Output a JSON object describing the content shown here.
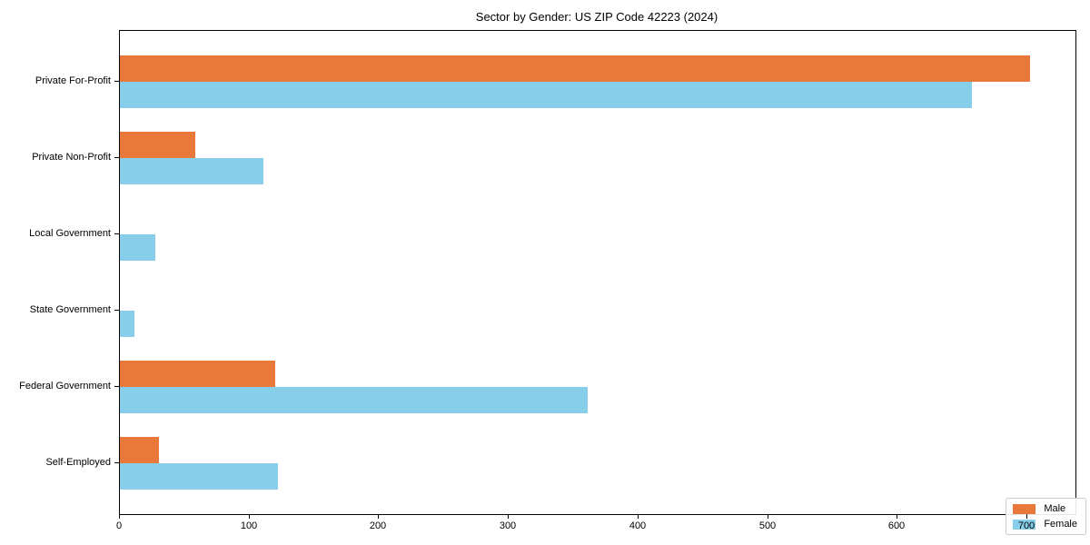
{
  "title": "Sector by Gender: US ZIP Code 42223 (2024)",
  "chart_data": {
    "type": "bar",
    "orientation": "horizontal",
    "title": "Sector by Gender: US ZIP Code 42223 (2024)",
    "categories": [
      "Private For-Profit",
      "Private Non-Profit",
      "Local Government",
      "State Government",
      "Federal Government",
      "Self-Employed"
    ],
    "series": [
      {
        "name": "Male",
        "color": "#e8793a",
        "values": [
          702,
          58,
          0,
          0,
          120,
          30
        ]
      },
      {
        "name": "Female",
        "color": "#87ceeb",
        "values": [
          657,
          111,
          27,
          11,
          361,
          122
        ]
      }
    ],
    "x_ticks": [
      0,
      100,
      200,
      300,
      400,
      500,
      600,
      700
    ],
    "xlim": [
      0,
      737
    ],
    "xlabel": "",
    "ylabel": "",
    "grid": false,
    "legend_position": "lower right"
  }
}
